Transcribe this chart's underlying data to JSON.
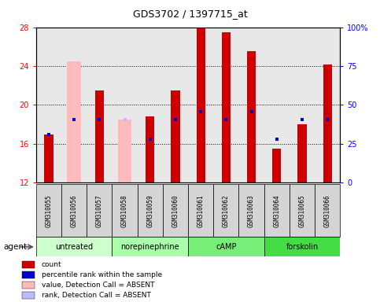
{
  "title": "GDS3702 / 1397715_at",
  "samples": [
    "GSM310055",
    "GSM310056",
    "GSM310057",
    "GSM310058",
    "GSM310059",
    "GSM310060",
    "GSM310061",
    "GSM310062",
    "GSM310063",
    "GSM310064",
    "GSM310065",
    "GSM310066"
  ],
  "red_bar_top": [
    17.0,
    12.0,
    21.5,
    12.0,
    18.8,
    21.5,
    28.0,
    27.5,
    25.5,
    15.5,
    18.0,
    24.2
  ],
  "red_bar_absent": [
    false,
    true,
    false,
    true,
    false,
    false,
    false,
    false,
    false,
    false,
    false,
    false
  ],
  "pink_bar_top": [
    null,
    24.5,
    null,
    18.5,
    null,
    null,
    null,
    null,
    null,
    null,
    null,
    null
  ],
  "blue_marker_y": [
    17.0,
    18.5,
    18.5,
    18.5,
    16.5,
    18.5,
    19.3,
    18.5,
    19.3,
    16.5,
    18.5,
    18.5
  ],
  "blue_absent": [
    false,
    false,
    false,
    true,
    false,
    false,
    false,
    false,
    false,
    false,
    false,
    false
  ],
  "ylim_left": [
    12,
    28
  ],
  "ylim_right": [
    0,
    100
  ],
  "yticks_left": [
    12,
    16,
    20,
    24,
    28
  ],
  "yticks_right": [
    0,
    25,
    50,
    75,
    100
  ],
  "yticklabels_right": [
    "0",
    "25",
    "50",
    "75",
    "100%"
  ],
  "bar_bottom": 12,
  "bar_width": 0.35,
  "absent_bar_width": 0.55,
  "red_color": "#cc0000",
  "pink_color": "#ffbbbb",
  "blue_color": "#0000cc",
  "light_blue_color": "#bbbbff",
  "bg_color": "#e8e8e8",
  "grid_color": "#000000",
  "group_labels": [
    "untreated",
    "norepinephrine",
    "cAMP",
    "forskolin"
  ],
  "group_ranges": [
    [
      0,
      2
    ],
    [
      3,
      5
    ],
    [
      6,
      8
    ],
    [
      9,
      11
    ]
  ],
  "group_colors": [
    "#ccffcc",
    "#aaffaa",
    "#77ee77",
    "#44dd44"
  ],
  "legend_items": [
    {
      "color": "#cc0000",
      "label": "count"
    },
    {
      "color": "#0000cc",
      "label": "percentile rank within the sample"
    },
    {
      "color": "#ffbbbb",
      "label": "value, Detection Call = ABSENT"
    },
    {
      "color": "#bbbbff",
      "label": "rank, Detection Call = ABSENT"
    }
  ]
}
